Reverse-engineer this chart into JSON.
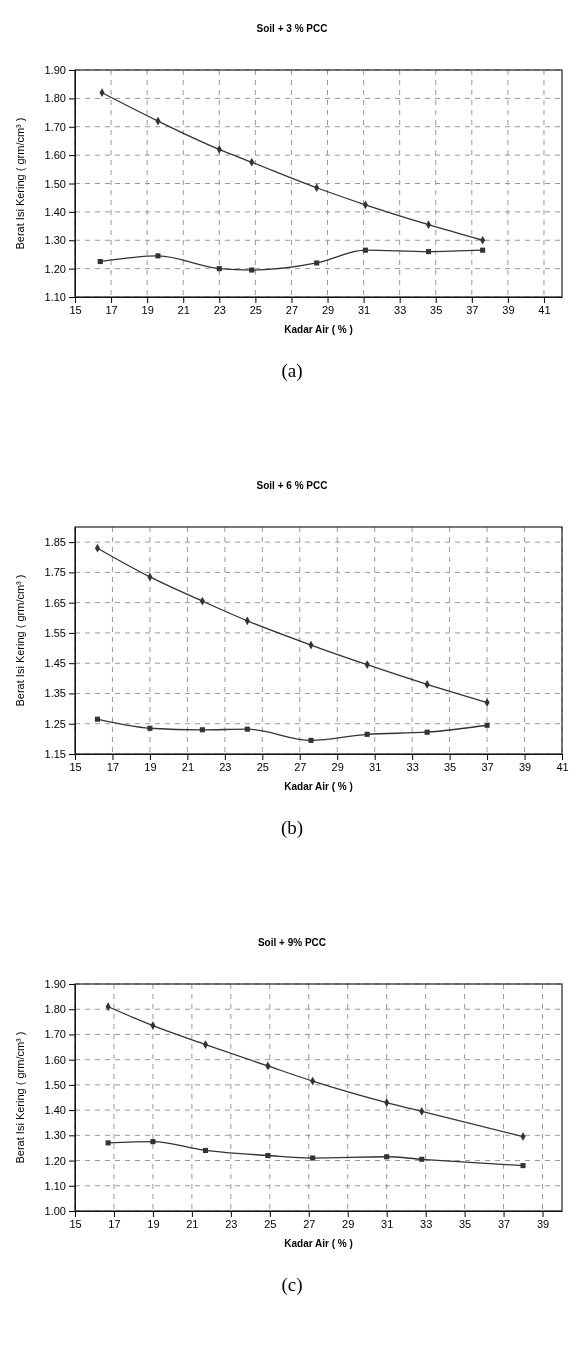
{
  "chart_data": [
    {
      "type": "line",
      "title": "Soil + 3 % PCC",
      "xlabel": "Kadar Air ( % )",
      "ylabel": "Berat Isi Kering ( grm/cm³ )",
      "annotations": [
        "(a)"
      ],
      "grid": true,
      "line_style": "solid",
      "xlim": [
        15,
        42
      ],
      "xticks": [
        15,
        17,
        19,
        21,
        23,
        25,
        27,
        29,
        31,
        33,
        35,
        37,
        39,
        41
      ],
      "ylim": [
        1.1,
        1.9
      ],
      "yticks": [
        {
          "value": 1.1,
          "label": "1.10"
        },
        {
          "value": 1.2,
          "label": "1.20"
        },
        {
          "value": 1.3,
          "label": "1.30"
        },
        {
          "value": 1.4,
          "label": "1.40"
        },
        {
          "value": 1.5,
          "label": "1.50"
        },
        {
          "value": 1.6,
          "label": "1.60"
        },
        {
          "value": 1.7,
          "label": "1.70"
        },
        {
          "value": 1.8,
          "label": "1.80"
        },
        {
          "value": 1.9,
          "label": "1.90"
        }
      ],
      "series": [
        {
          "color": "#333333",
          "marker": "diamond",
          "x": [
            16.5,
            19.6,
            23.0,
            24.8,
            28.4,
            31.1,
            34.6,
            37.6
          ],
          "values": [
            1.82,
            1.72,
            1.62,
            1.575,
            1.485,
            1.425,
            1.355,
            1.3
          ]
        },
        {
          "color": "#333333",
          "marker": "square",
          "x": [
            16.4,
            19.6,
            23.0,
            24.8,
            28.4,
            31.1,
            34.6,
            37.6
          ],
          "values": [
            1.225,
            1.245,
            1.2,
            1.195,
            1.22,
            1.265,
            1.26,
            1.265
          ]
        }
      ]
    },
    {
      "type": "line",
      "title": "Soil + 6 % PCC",
      "xlabel": "Kadar Air ( % )",
      "ylabel": "Berat Isi Kering ( grm/cm³ )",
      "annotations": [
        "(b)"
      ],
      "grid": true,
      "line_style": "solid",
      "xlim": [
        15,
        41
      ],
      "xticks": [
        15,
        17,
        19,
        21,
        23,
        25,
        27,
        29,
        31,
        33,
        35,
        37,
        39,
        41
      ],
      "ylim": [
        1.15,
        1.9
      ],
      "yticks": [
        1.15,
        1.25,
        1.35,
        1.45,
        1.55,
        1.65,
        1.75,
        1.85
      ],
      "series": [
        {
          "color": "#333333",
          "marker": "diamond",
          "x": [
            16.2,
            19.0,
            21.8,
            24.2,
            27.6,
            30.6,
            33.8,
            37.0
          ],
          "values": [
            1.83,
            1.735,
            1.655,
            1.59,
            1.51,
            1.445,
            1.38,
            1.32
          ]
        },
        {
          "color": "#333333",
          "marker": "square",
          "x": [
            16.2,
            19.0,
            21.8,
            24.2,
            27.6,
            30.6,
            33.8,
            37.0
          ],
          "values": [
            1.265,
            1.235,
            1.23,
            1.232,
            1.195,
            1.215,
            1.222,
            1.245
          ]
        }
      ]
    },
    {
      "type": "line",
      "title": "Soil + 9% PCC",
      "xlabel": "Kadar Air ( % )",
      "ylabel": "Berat Isi Kering ( grm/cm³ )",
      "annotations": [
        "(c)"
      ],
      "grid": true,
      "line_style": "solid",
      "xlim": [
        15,
        40
      ],
      "xticks": [
        15,
        17,
        19,
        21,
        23,
        25,
        27,
        29,
        31,
        33,
        35,
        37,
        39
      ],
      "ylim": [
        1.0,
        1.9
      ],
      "yticks": [
        {
          "value": 1.0,
          "label": "1.00"
        },
        {
          "value": 1.1,
          "label": "1.10"
        },
        {
          "value": 1.2,
          "label": "1.20"
        },
        {
          "value": 1.3,
          "label": "1.30"
        },
        {
          "value": 1.4,
          "label": "1.40"
        },
        {
          "value": 1.5,
          "label": "1.50"
        },
        {
          "value": 1.6,
          "label": "1.60"
        },
        {
          "value": 1.7,
          "label": "1.70"
        },
        {
          "value": 1.8,
          "label": "1.80"
        },
        {
          "value": 1.9,
          "label": "1.90"
        }
      ],
      "series": [
        {
          "color": "#333333",
          "marker": "diamond",
          "x": [
            16.7,
            19.0,
            21.7,
            24.9,
            27.2,
            31.0,
            32.8,
            38.0
          ],
          "values": [
            1.81,
            1.735,
            1.66,
            1.575,
            1.515,
            1.43,
            1.395,
            1.295
          ]
        },
        {
          "color": "#333333",
          "marker": "square",
          "x": [
            16.7,
            19.0,
            21.7,
            24.9,
            27.2,
            31.0,
            32.8,
            38.0
          ],
          "values": [
            1.27,
            1.275,
            1.24,
            1.22,
            1.21,
            1.215,
            1.205,
            1.18
          ]
        }
      ]
    }
  ]
}
